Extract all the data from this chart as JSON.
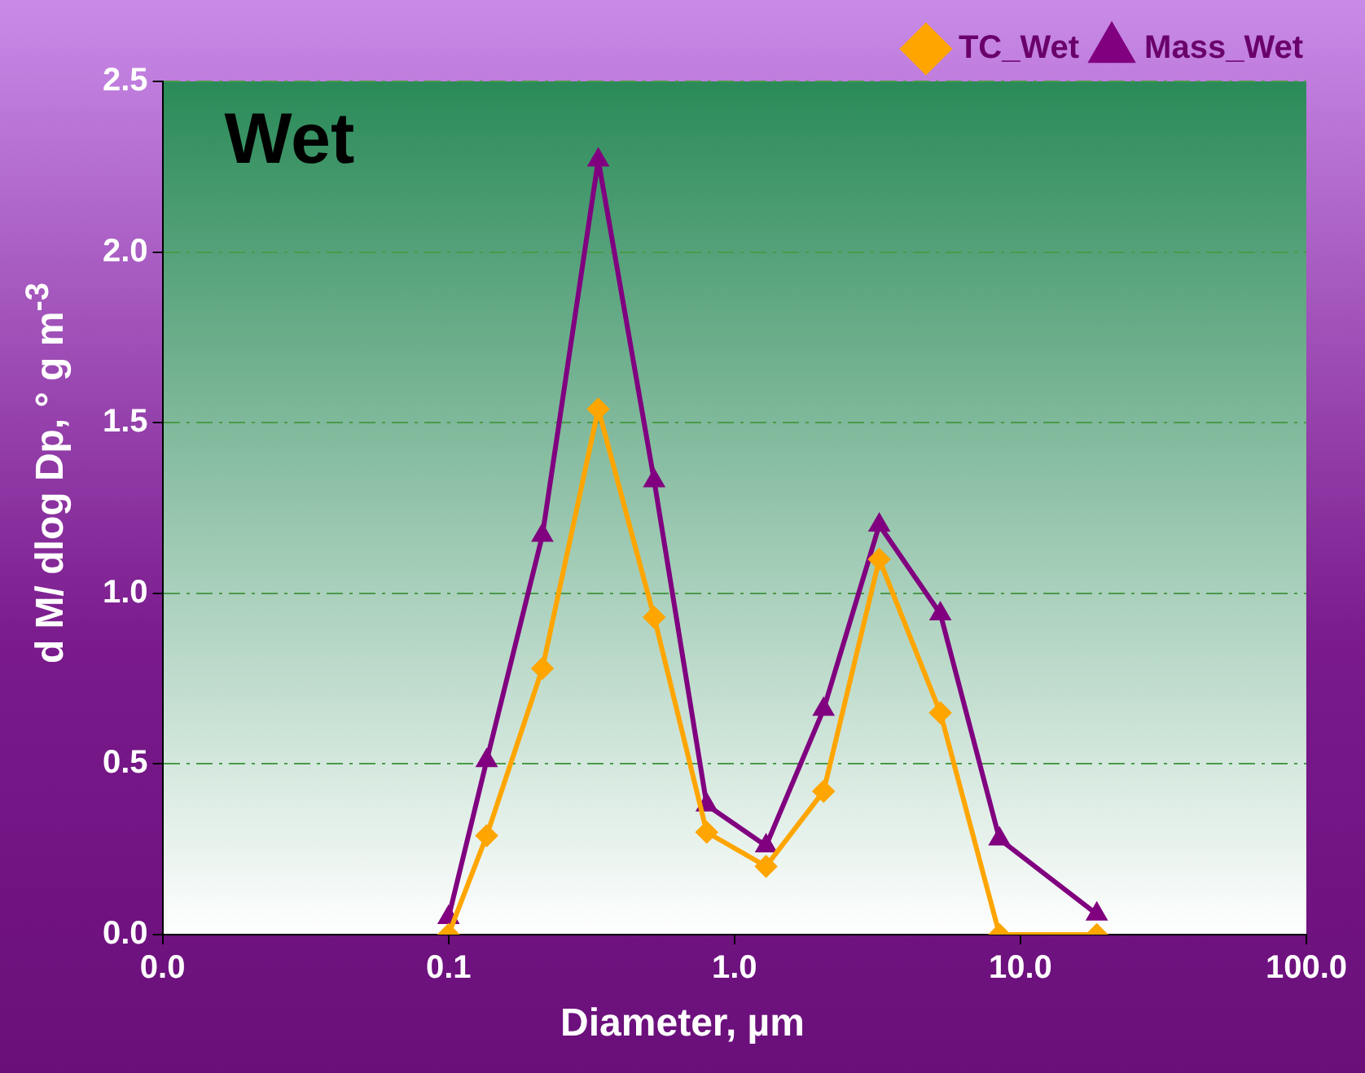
{
  "chart_data": {
    "type": "line",
    "title": "Wet",
    "xlabel": "Diameter, µm",
    "ylabel": "d M/ dlog Dp, ° g m$^{-3}$",
    "log": "x",
    "xlim": [
      0.01,
      100
    ],
    "xticks": [
      {
        "value": 0.01,
        "label": "0.0"
      },
      0.1,
      {
        "value": 1,
        "label": "1.0"
      },
      {
        "value": 10,
        "label": "10.0"
      },
      {
        "value": 100,
        "label": "100.0"
      }
    ],
    "ylim": [
      0,
      2.5
    ],
    "yticks": [
      {
        "value": 0,
        "label": "0.0"
      },
      0.5,
      {
        "value": 1,
        "label": "1.0"
      },
      1.5,
      {
        "value": 2,
        "label": "2.0"
      },
      2.5
    ],
    "grid": "y",
    "legend": "top right",
    "line_style": "solid",
    "x": [
      0.1,
      0.136,
      0.213,
      0.334,
      0.524,
      0.8,
      1.29,
      2.05,
      3.21,
      5.25,
      8.45,
      18.5
    ],
    "series": [
      {
        "name": "TC_Wet",
        "color": "#ffa500",
        "marker": "diamond",
        "values": [
          0.0,
          0.29,
          0.78,
          1.54,
          0.93,
          0.3,
          0.2,
          0.42,
          1.1,
          0.65,
          0.0,
          0.0
        ]
      },
      {
        "name": "Mass_Wet",
        "color": "#800080",
        "marker": "triangle",
        "values": [
          0.05,
          0.51,
          1.17,
          2.27,
          1.33,
          0.38,
          0.26,
          0.66,
          1.2,
          0.94,
          0.28,
          0.06
        ]
      }
    ]
  }
}
